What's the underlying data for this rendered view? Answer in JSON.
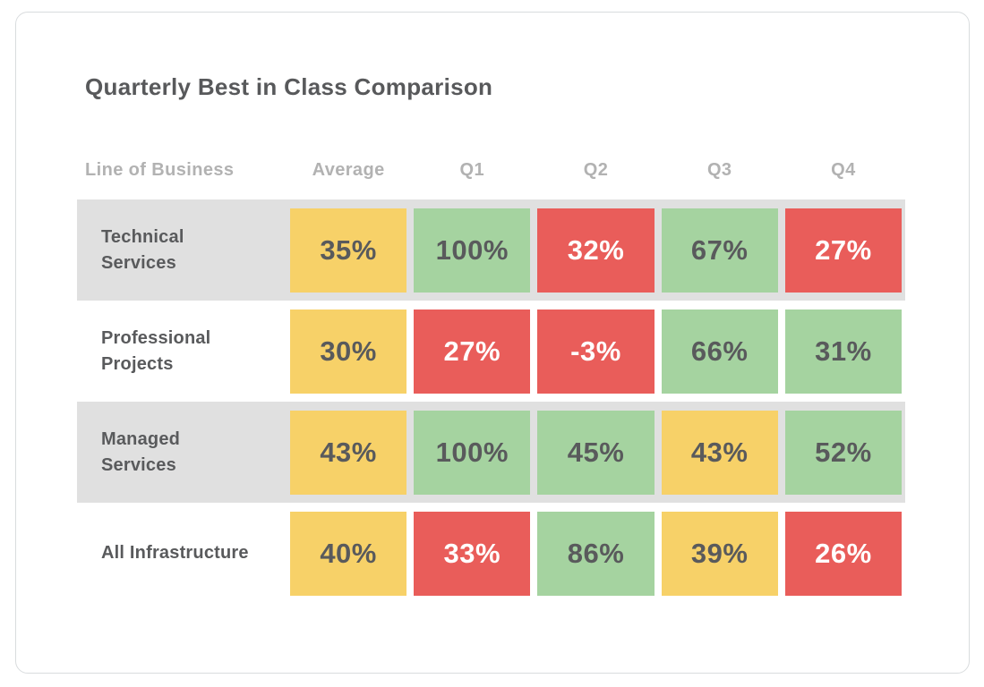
{
  "colors": {
    "yellow": "#F7D168",
    "green": "#A5D3A0",
    "red": "#E95D5A",
    "row_shade": "#E0E0E0",
    "text_dark": "#595A5C",
    "text_on_red": "#FFFFFF",
    "header_text": "#B2B2B2",
    "title_text": "#58595B",
    "card_border": "#D9DCDE",
    "card_bg": "#FFFFFF"
  },
  "chart_data": {
    "type": "heatmap",
    "title": "Quarterly Best in Class Comparison",
    "row_label_header": "Line of Business",
    "column_headers": [
      "Average",
      "Q1",
      "Q2",
      "Q3",
      "Q4"
    ],
    "legend": "none",
    "value_range": [
      -3,
      100
    ],
    "rows": [
      {
        "label": "Technical Services",
        "band": "shaded",
        "cells": [
          {
            "text": "35%",
            "value": 35,
            "color": "yellow"
          },
          {
            "text": "100%",
            "value": 100,
            "color": "green"
          },
          {
            "text": "32%",
            "value": 32,
            "color": "red"
          },
          {
            "text": "67%",
            "value": 67,
            "color": "green"
          },
          {
            "text": "27%",
            "value": 27,
            "color": "red"
          }
        ]
      },
      {
        "label": "Professional Projects",
        "band": "plain",
        "cells": [
          {
            "text": "30%",
            "value": 30,
            "color": "yellow"
          },
          {
            "text": "27%",
            "value": 27,
            "color": "red"
          },
          {
            "text": "-3%",
            "value": -3,
            "color": "red"
          },
          {
            "text": "66%",
            "value": 66,
            "color": "green"
          },
          {
            "text": "31%",
            "value": 31,
            "color": "green"
          }
        ]
      },
      {
        "label": "Managed Services",
        "band": "shaded",
        "cells": [
          {
            "text": "43%",
            "value": 43,
            "color": "yellow"
          },
          {
            "text": "100%",
            "value": 100,
            "color": "green"
          },
          {
            "text": "45%",
            "value": 45,
            "color": "green"
          },
          {
            "text": "43%",
            "value": 43,
            "color": "yellow"
          },
          {
            "text": "52%",
            "value": 52,
            "color": "green"
          }
        ]
      },
      {
        "label": "All Infrastructure",
        "band": "plain",
        "cells": [
          {
            "text": "40%",
            "value": 40,
            "color": "yellow"
          },
          {
            "text": "33%",
            "value": 33,
            "color": "red"
          },
          {
            "text": "86%",
            "value": 86,
            "color": "green"
          },
          {
            "text": "39%",
            "value": 39,
            "color": "yellow"
          },
          {
            "text": "26%",
            "value": 26,
            "color": "red"
          }
        ]
      }
    ]
  }
}
